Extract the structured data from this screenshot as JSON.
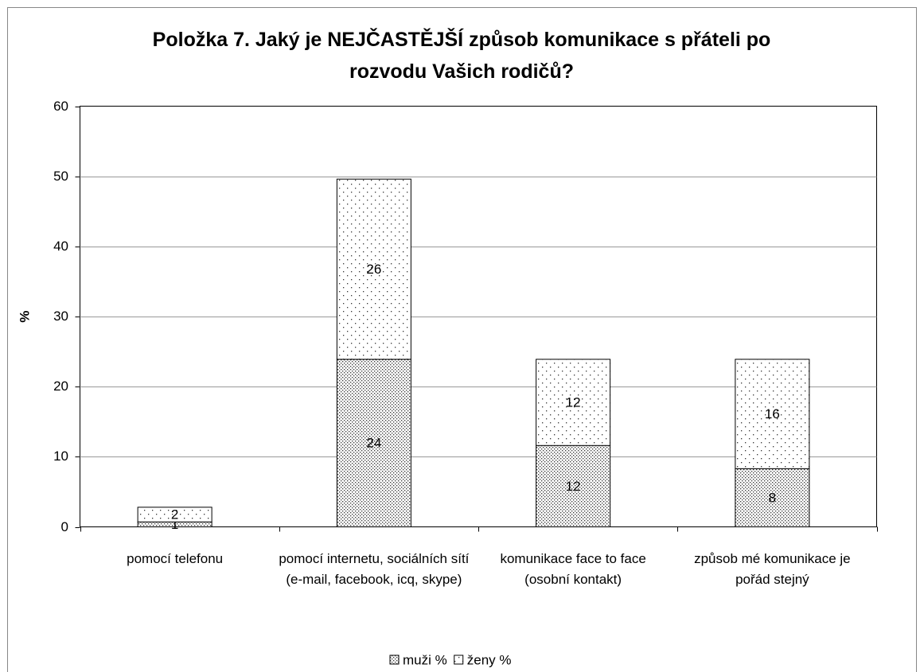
{
  "chart_data": {
    "type": "stacked_bar",
    "title": "Položka 7. Jaký je NEJČASTĚJŠÍ způsob komunikace s přáteli po rozvodu Vašich rodičů?",
    "y_label": "%",
    "categories": [
      "pomocí telefonu",
      "pomocí internetu, sociálních sítí (e-mail, facebook, icq, skype)",
      "komunikace face to face (osobní kontakt)",
      "způsob mé komunikace je pořád stejný"
    ],
    "series": [
      {
        "name": "muži %",
        "color": "#000000",
        "values": [
          0.7,
          23.9,
          11.6,
          8.3
        ],
        "value_labels": [
          "1",
          "24",
          "12",
          "8"
        ]
      },
      {
        "name": "ženy %",
        "color": "#000000",
        "values": [
          2.1,
          25.7,
          12.3,
          15.6
        ],
        "value_labels": [
          "2",
          "26",
          "12",
          "16"
        ]
      }
    ],
    "ylim": [
      0,
      60
    ],
    "yticks": [
      0,
      10,
      20,
      30,
      40,
      50,
      60
    ],
    "grid": true,
    "legend": "bottom"
  }
}
